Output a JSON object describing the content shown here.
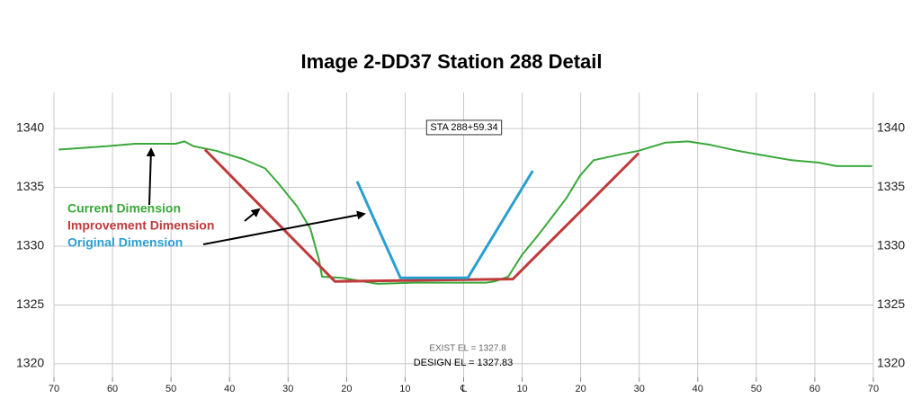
{
  "chart_data": {
    "type": "line",
    "title": "Image 2-DD37 Station 288 Detail",
    "xlim": [
      -70,
      70
    ],
    "xticks": [
      {
        "value": -70,
        "label": "70"
      },
      {
        "value": -60,
        "label": "60"
      },
      {
        "value": -50,
        "label": "50"
      },
      {
        "value": -40,
        "label": "40"
      },
      {
        "value": -30,
        "label": "30"
      },
      {
        "value": -20,
        "label": "20"
      },
      {
        "value": -10,
        "label": "10"
      },
      {
        "value": 0,
        "label": "℄"
      },
      {
        "value": 10,
        "label": "10"
      },
      {
        "value": 20,
        "label": "20"
      },
      {
        "value": 30,
        "label": "30"
      },
      {
        "value": 40,
        "label": "40"
      },
      {
        "value": 50,
        "label": "50"
      },
      {
        "value": 60,
        "label": "60"
      },
      {
        "value": 70,
        "label": "70"
      }
    ],
    "ylim": [
      1318.85,
      1343.05
    ],
    "yticks": [
      1320,
      1325,
      1330,
      1335,
      1340
    ],
    "grid": true,
    "series": [
      {
        "name": "Current Dimension",
        "color": "#3aa83a",
        "x": [
          -69.2,
          -60.8,
          -56.1,
          -49.2,
          -47.7,
          -46.2,
          -42.3,
          -37.7,
          -33.9,
          -31.6,
          -28.5,
          -26.2,
          -24.7,
          -24.2,
          -20.8,
          -14.7,
          -8.5,
          -2.4,
          3.8,
          5.3,
          7.6,
          9.9,
          13.0,
          17.6,
          19.9,
          22.2,
          26.8,
          29.9,
          34.5,
          38.3,
          42.2,
          46.8,
          51.4,
          56.0,
          60.6,
          63.7,
          69.8
        ],
        "values": [
          1338.2,
          1338.5,
          1338.7,
          1338.7,
          1338.9,
          1338.5,
          1338.1,
          1337.4,
          1336.6,
          1335.3,
          1333.4,
          1331.5,
          1328.8,
          1327.4,
          1327.3,
          1326.8,
          1326.9,
          1326.9,
          1326.9,
          1327.0,
          1327.4,
          1329.2,
          1331.1,
          1334.1,
          1336.0,
          1337.3,
          1337.8,
          1338.1,
          1338.8,
          1338.9,
          1338.6,
          1338.1,
          1337.7,
          1337.3,
          1337.1,
          1336.8,
          1336.8
        ]
      },
      {
        "name": "Improvement Dimension",
        "color": "#c0393b",
        "x": [
          -44.2,
          -22.0,
          8.4,
          29.9
        ],
        "values": [
          1338.2,
          1327.0,
          1327.2,
          1337.9
        ]
      },
      {
        "name": "Original Dimension",
        "color": "#2a9fd0",
        "x": [
          -18.2,
          -10.8,
          0.7,
          11.8
        ],
        "values": [
          1335.5,
          1327.3,
          1327.3,
          1336.4
        ]
      }
    ],
    "annotations": [
      {
        "text": "STA 288+59.34"
      },
      {
        "text": "EXIST EL = 1327.8"
      },
      {
        "text": "DESIGN EL = 1327.83"
      }
    ]
  }
}
